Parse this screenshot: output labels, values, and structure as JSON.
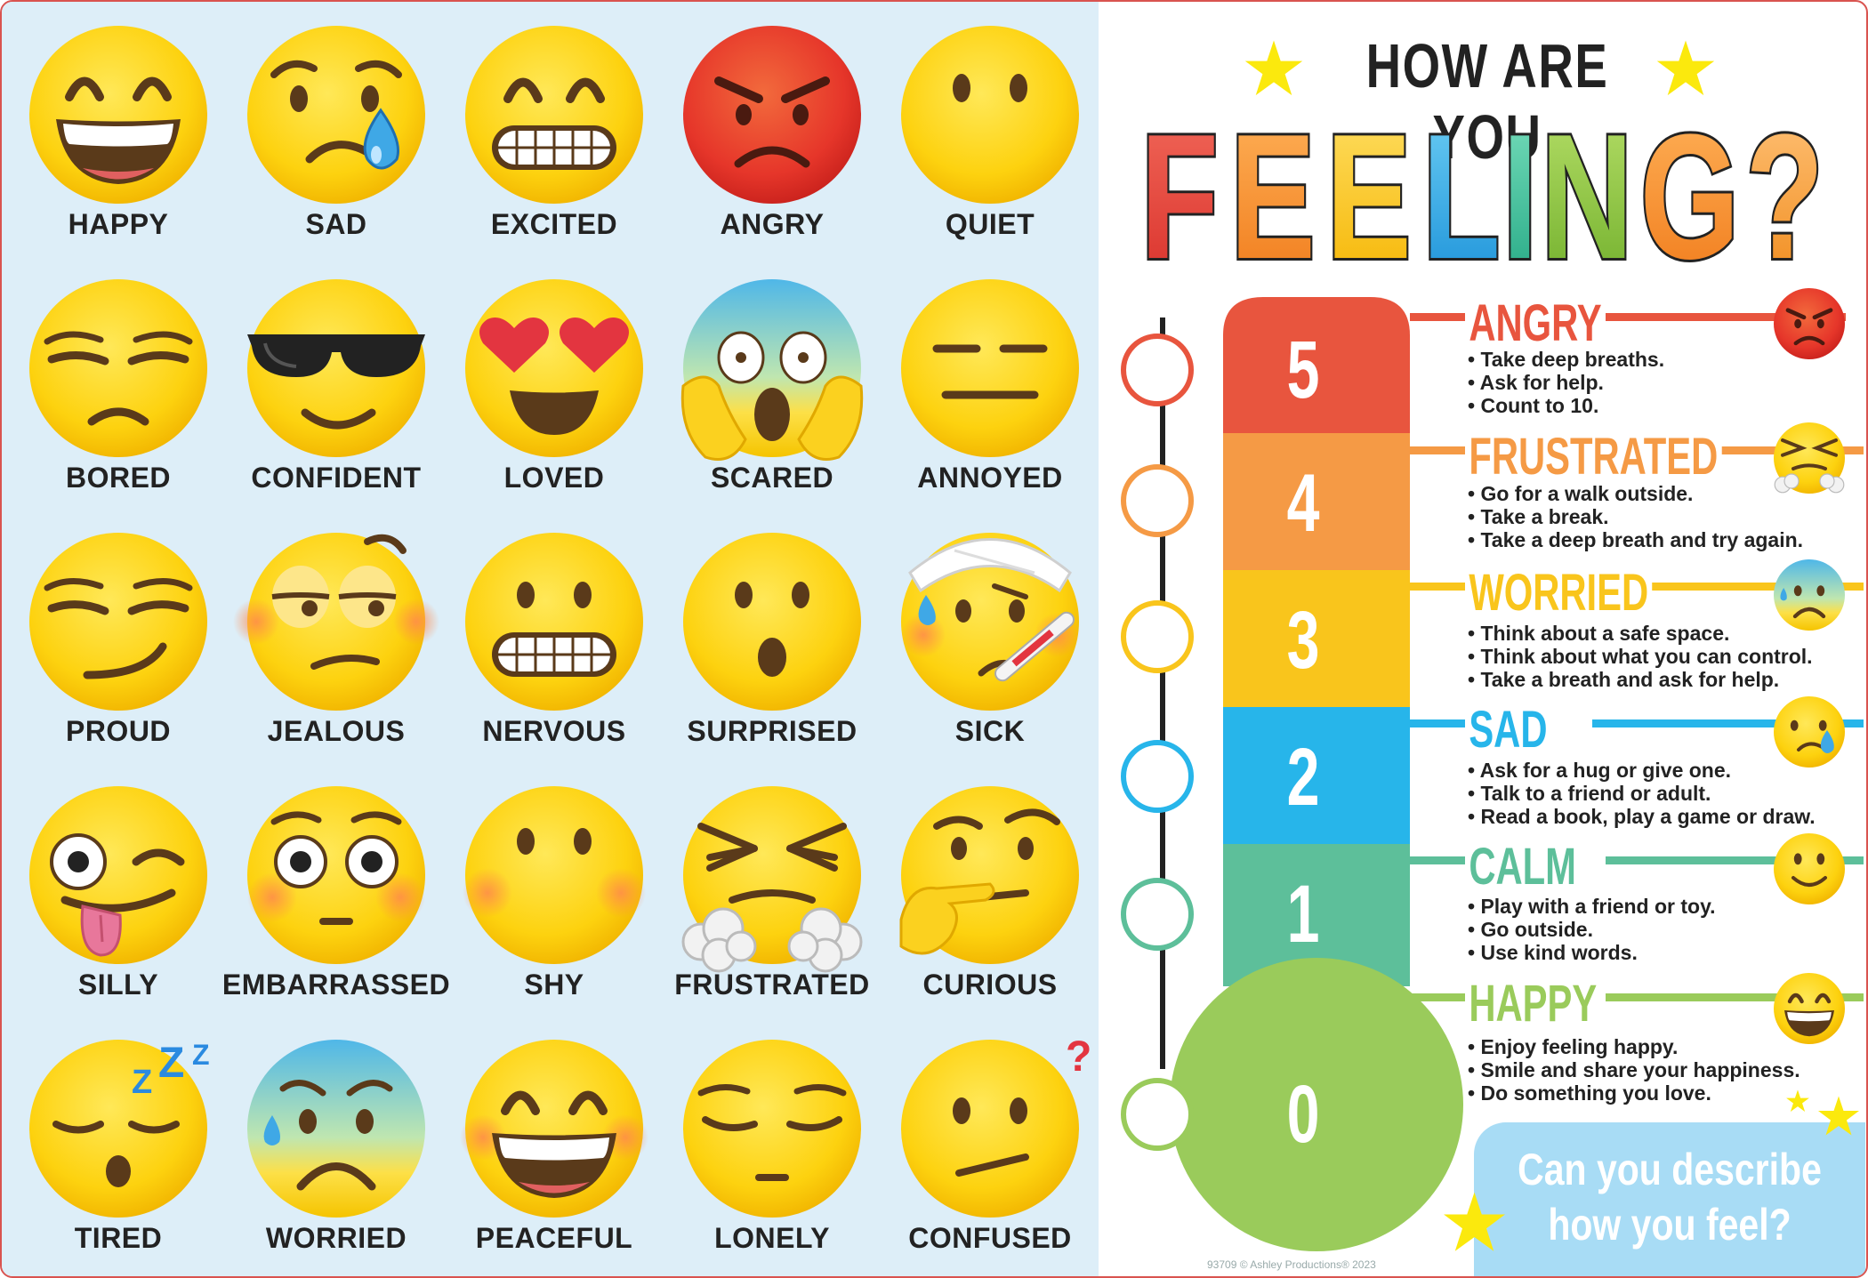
{
  "header": {
    "line1": "HOW ARE YOU",
    "line2": "FEELING?"
  },
  "emojis": [
    {
      "label": "HAPPY",
      "icon": "grinning-face-icon"
    },
    {
      "label": "SAD",
      "icon": "crying-face-icon"
    },
    {
      "label": "EXCITED",
      "icon": "grimacing-smile-face-icon"
    },
    {
      "label": "ANGRY",
      "icon": "angry-red-face-icon"
    },
    {
      "label": "QUIET",
      "icon": "no-mouth-face-icon"
    },
    {
      "label": "BORED",
      "icon": "unamused-face-icon"
    },
    {
      "label": "CONFIDENT",
      "icon": "sunglasses-face-icon"
    },
    {
      "label": "LOVED",
      "icon": "heart-eyes-face-icon"
    },
    {
      "label": "SCARED",
      "icon": "screaming-face-icon"
    },
    {
      "label": "ANNOYED",
      "icon": "expressionless-face-icon"
    },
    {
      "label": "PROUD",
      "icon": "smirking-face-icon"
    },
    {
      "label": "JEALOUS",
      "icon": "eye-roll-face-icon"
    },
    {
      "label": "NERVOUS",
      "icon": "grimacing-face-icon"
    },
    {
      "label": "SURPRISED",
      "icon": "hushed-face-icon"
    },
    {
      "label": "SICK",
      "icon": "bandaged-thermometer-face-icon"
    },
    {
      "label": "SILLY",
      "icon": "winking-tongue-face-icon"
    },
    {
      "label": "EMBARRASSED",
      "icon": "flushed-face-icon"
    },
    {
      "label": "SHY",
      "icon": "blushing-face-icon"
    },
    {
      "label": "FRUSTRATED",
      "icon": "steam-nose-face-icon"
    },
    {
      "label": "CURIOUS",
      "icon": "thinking-face-icon"
    },
    {
      "label": "TIRED",
      "icon": "sleeping-face-icon"
    },
    {
      "label": "WORRIED",
      "icon": "anxious-sweat-face-icon"
    },
    {
      "label": "PEACEFUL",
      "icon": "smiling-eyes-face-icon"
    },
    {
      "label": "LONELY",
      "icon": "pensive-face-icon"
    },
    {
      "label": "CONFUSED",
      "icon": "confused-question-face-icon"
    }
  ],
  "scale": {
    "levels": [
      {
        "number": "5",
        "name": "ANGRY",
        "color": "#e8553e",
        "icon": "angry-face-icon",
        "tips": [
          "Take deep breaths.",
          "Ask for help.",
          "Count to 10."
        ]
      },
      {
        "number": "4",
        "name": "FRUSTRATED",
        "color": "#f59a45",
        "icon": "frustrated-face-icon",
        "tips": [
          "Go for a walk outside.",
          "Take a break.",
          "Take a deep breath and try again."
        ]
      },
      {
        "number": "3",
        "name": "WORRIED",
        "color": "#f9c51c",
        "icon": "worried-face-icon",
        "tips": [
          "Think about a safe space.",
          "Think about what you can control.",
          "Take a breath and ask for help."
        ]
      },
      {
        "number": "2",
        "name": "SAD",
        "color": "#27b5ea",
        "icon": "sad-face-icon",
        "tips": [
          "Ask for a hug or give one.",
          "Talk to a friend or adult.",
          "Read a book, play a game or draw."
        ]
      },
      {
        "number": "1",
        "name": "CALM",
        "color": "#5dbf9a",
        "icon": "calm-face-icon",
        "tips": [
          "Play with a friend or toy.",
          "Go outside.",
          "Use kind words."
        ]
      },
      {
        "number": "0",
        "name": "HAPPY",
        "color": "#9acb5b",
        "icon": "happy-face-icon",
        "tips": [
          "Enjoy feeling happy.",
          "Smile and share your happiness.",
          "Do something you love."
        ]
      }
    ]
  },
  "prompt": {
    "line1": "Can you describe",
    "line2": "how you feel?"
  },
  "footer": {
    "copyright": "93709 © Ashley Productions® 2023"
  }
}
